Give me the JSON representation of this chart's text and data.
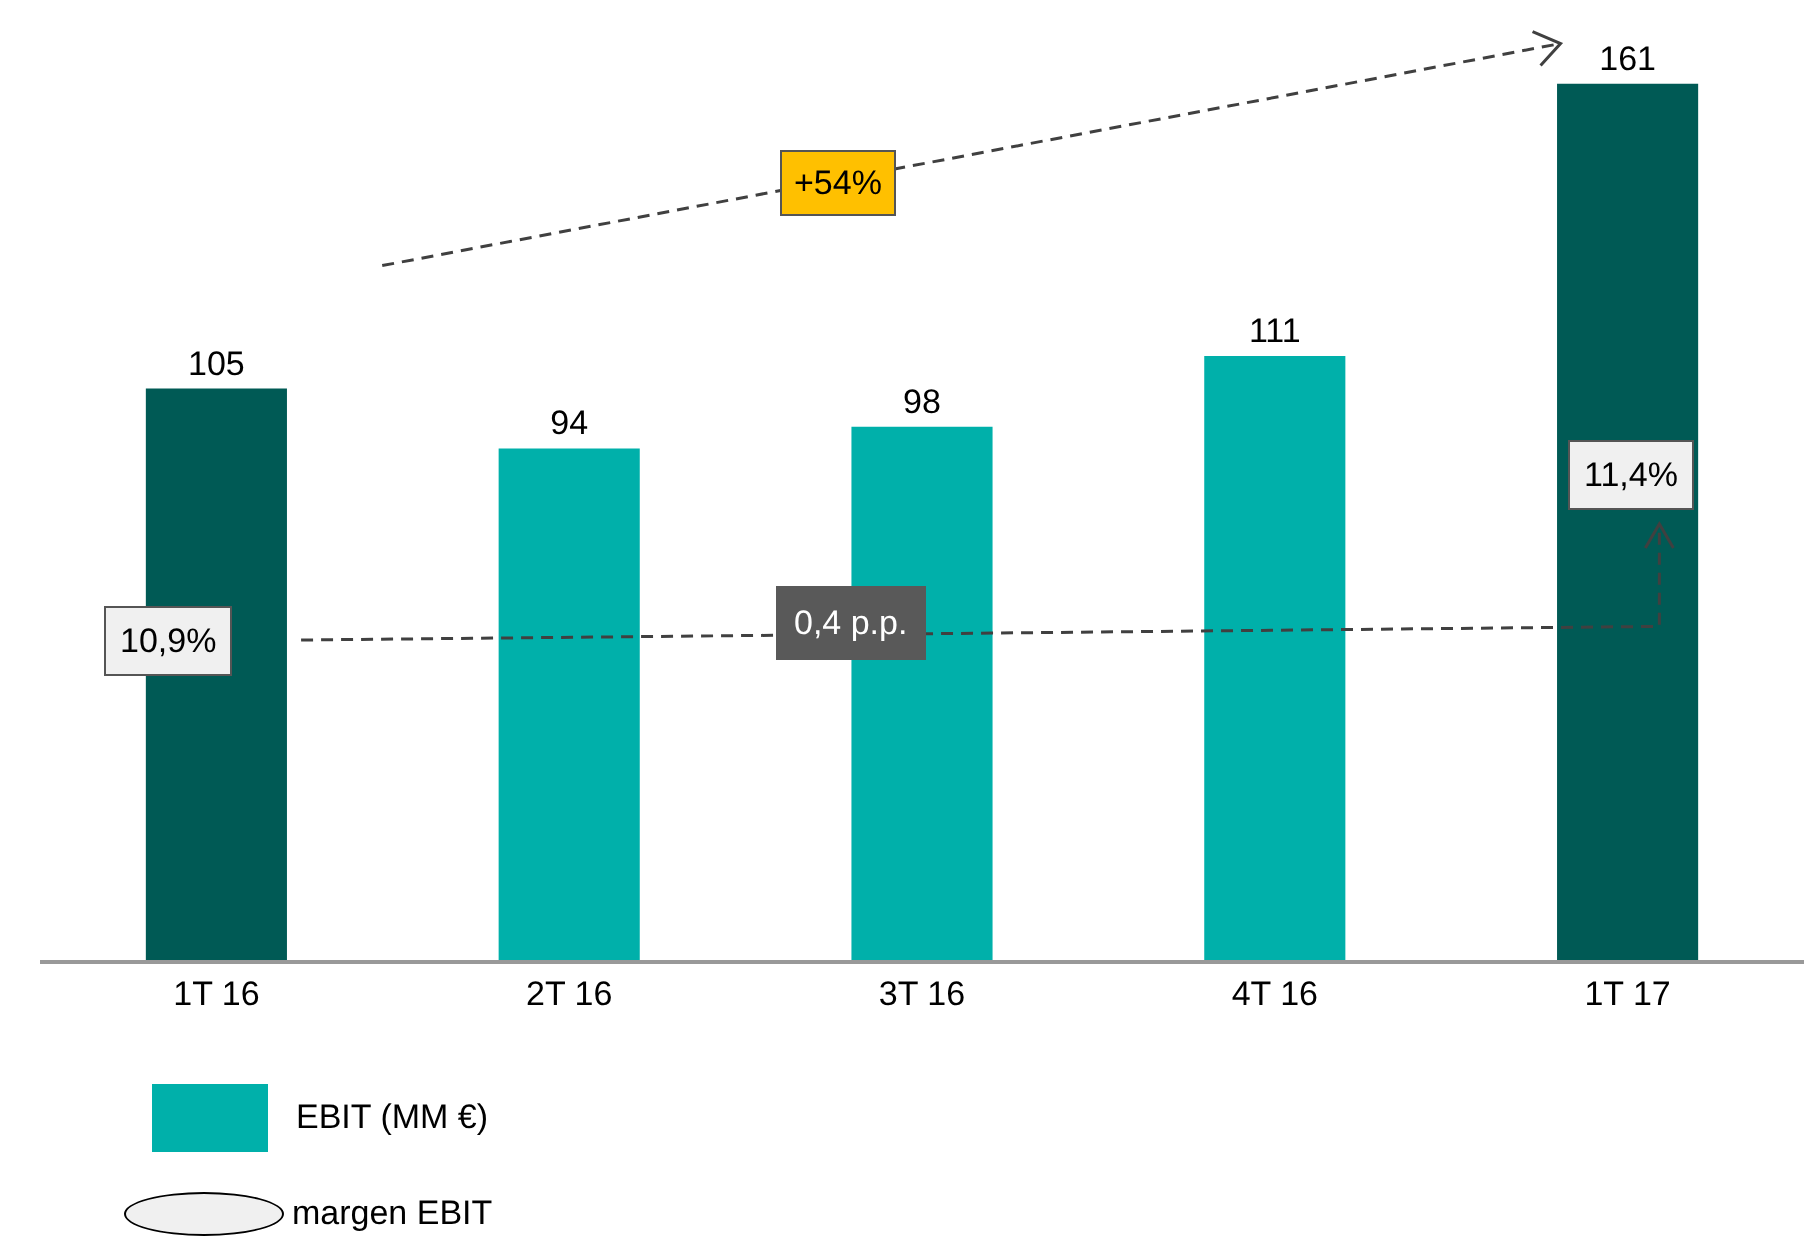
{
  "chart_data": {
    "type": "bar",
    "categories": [
      "1T 16",
      "2T 16",
      "3T 16",
      "4T 16",
      "1T 17"
    ],
    "series": [
      {
        "name": "EBIT (MM €)",
        "color": "#00b0aa",
        "colors": [
          "#005a55",
          "#00b0aa",
          "#00b0aa",
          "#00b0aa",
          "#005a55"
        ],
        "values": [
          105,
          94,
          98,
          111,
          161
        ]
      }
    ],
    "data_labels": true,
    "legend": "bottom left",
    "grid": false,
    "annotations": [
      "+54%",
      "0,4 p.p.",
      "10,9%",
      "11,4%",
      "margen EBIT"
    ]
  }
}
